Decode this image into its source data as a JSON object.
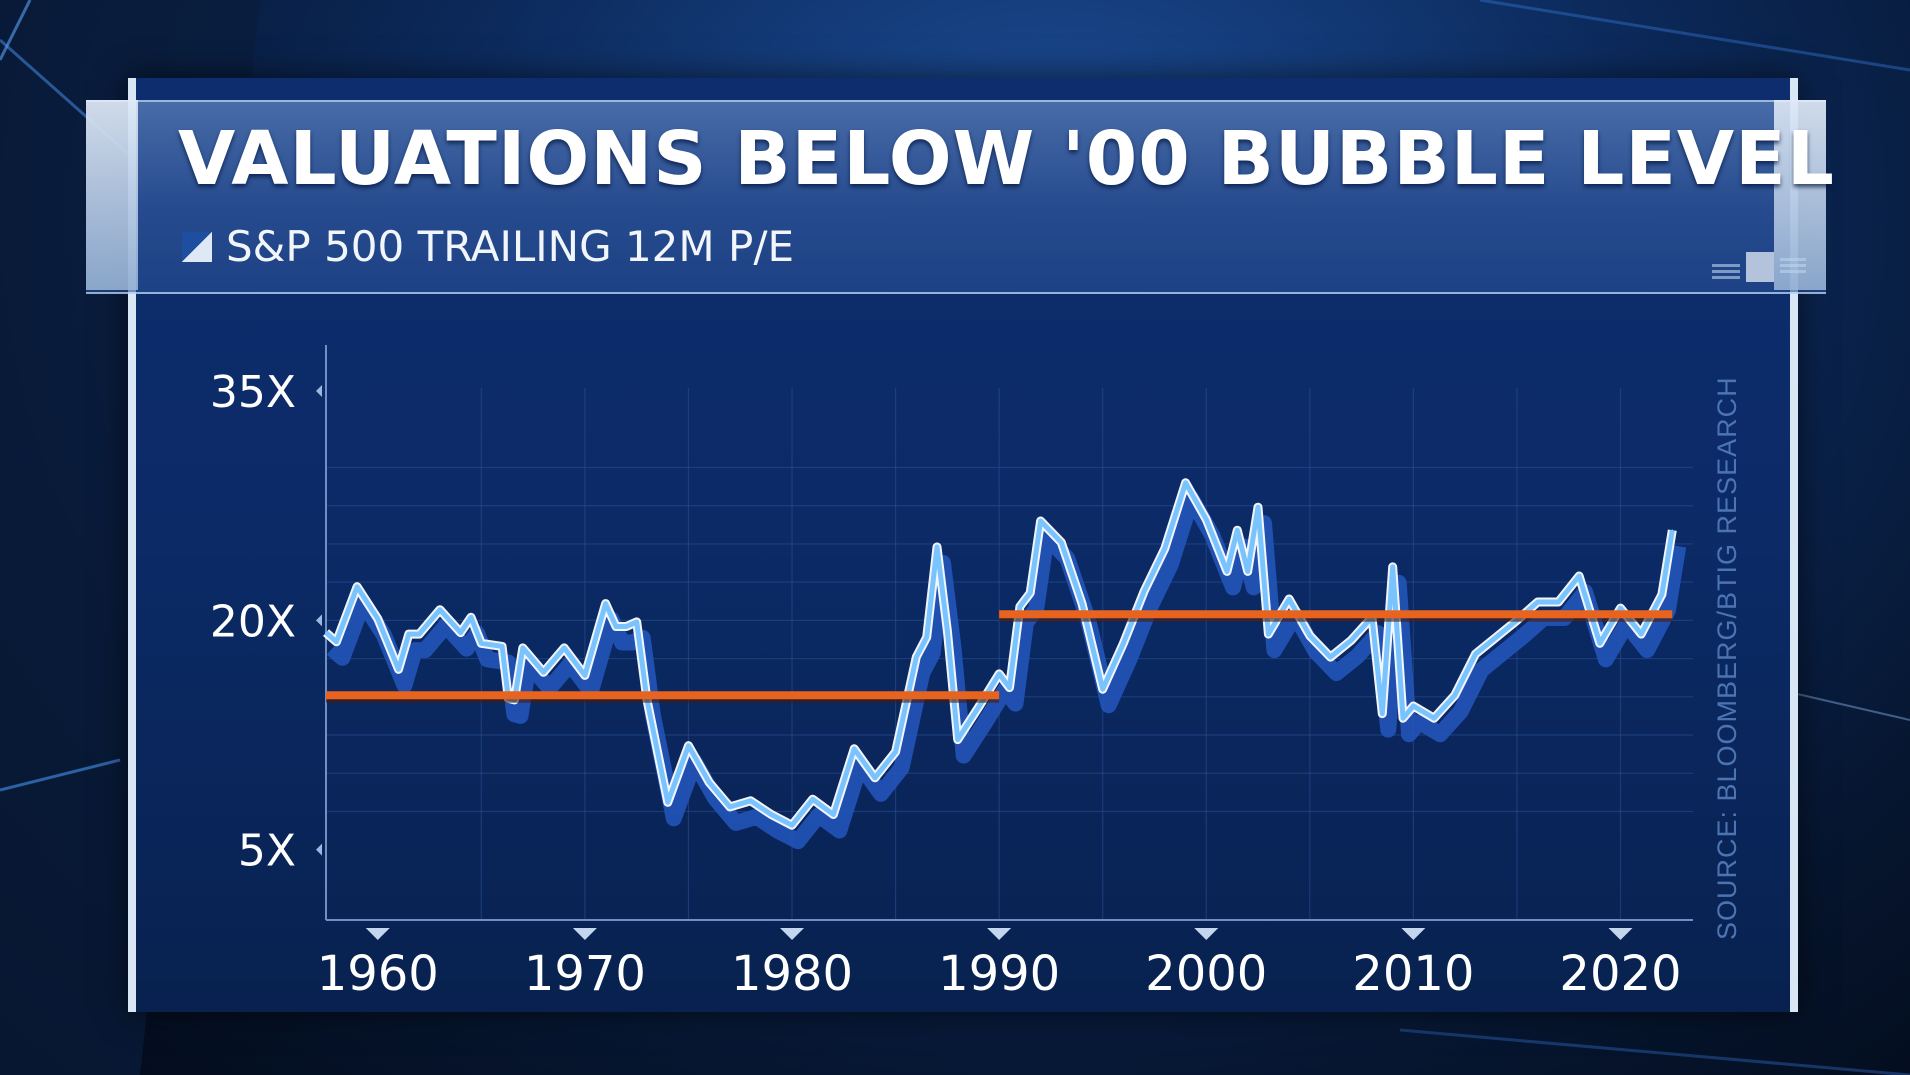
{
  "title": "VALUATIONS BELOW '00 BUBBLE LEVEL",
  "subtitle": "S&P 500 TRAILING 12M P/E",
  "source": "SOURCE: BLOOMBERG/BTIG RESEARCH",
  "colors": {
    "line": "#79c3ff",
    "line_shadow": "#2254b8",
    "average": "#e8641e",
    "text": "#ffffff"
  },
  "chart_data": {
    "type": "line",
    "title": "VALUATIONS BELOW '00 BUBBLE LEVEL",
    "subtitle": "S&P 500 TRAILING 12M P/E",
    "y_ticks": [
      5,
      20,
      35
    ],
    "y_tick_labels": [
      "5X",
      "20X",
      "35X"
    ],
    "x_ticks": [
      1960,
      1970,
      1980,
      1990,
      2000,
      2010,
      2020
    ],
    "x_tick_labels": [
      "1960",
      "1970",
      "1980",
      "1990",
      "2000",
      "2010",
      "2020"
    ],
    "xlim": [
      1957.5,
      2023.5
    ],
    "ylim": [
      0.4,
      35.2
    ],
    "grid": true,
    "series": [
      {
        "x": [
          1957.5,
          1958,
          1959,
          1960,
          1961,
          1961.5,
          1962,
          1963,
          1964,
          1964.5,
          1965,
          1966,
          1966.3,
          1966.6,
          1967,
          1968,
          1969,
          1970,
          1971,
          1971.5,
          1972,
          1972.5,
          1973,
          1974,
          1975,
          1976,
          1977,
          1978,
          1979,
          1980,
          1981,
          1982,
          1983,
          1984,
          1985,
          1986,
          1986.5,
          1987,
          1987.5,
          1988,
          1989,
          1990,
          1990.5,
          1991,
          1991.5,
          1992,
          1993,
          1994,
          1995,
          1996,
          1997,
          1998,
          1999,
          2000,
          2001,
          2001.5,
          2002,
          2002.5,
          2003,
          2004,
          2005,
          2006,
          2007,
          2008,
          2008.5,
          2009,
          2009.5,
          2010,
          2011,
          2012,
          2013,
          2014,
          2015,
          2016,
          2017,
          2018,
          2019,
          2020,
          2021,
          2022,
          2022.5
        ],
        "values": [
          19.2,
          18.6,
          22.2,
          20.1,
          16.8,
          19.1,
          19.1,
          20.7,
          19.2,
          20.2,
          18.5,
          18.3,
          14.9,
          14.8,
          18.2,
          16.6,
          18.2,
          16.4,
          21.1,
          19.6,
          19.6,
          19.9,
          14.8,
          8.1,
          11.8,
          9.4,
          7.8,
          8.2,
          7.3,
          6.6,
          8.3,
          7.3,
          11.6,
          9.7,
          11.4,
          17.6,
          18.9,
          24.8,
          19.3,
          12.2,
          14.3,
          16.5,
          15.6,
          20.9,
          21.8,
          26.5,
          25.1,
          21.1,
          15.5,
          18.5,
          21.9,
          24.7,
          29.0,
          26.6,
          23.2,
          25.9,
          23.2,
          27.4,
          19.1,
          21.4,
          19.0,
          17.6,
          18.7,
          20.2,
          13.9,
          23.5,
          13.6,
          14.4,
          13.6,
          15.1,
          17.8,
          18.9,
          20.0,
          21.2,
          21.2,
          22.9,
          18.5,
          20.8,
          19.1,
          21.7,
          25.9
        ]
      },
      {
        "name": "average",
        "segments": [
          {
            "x": [
              1957.5,
              1990
            ],
            "y": [
              15.1,
              15.1
            ]
          },
          {
            "x": [
              1990,
              2022.5
            ],
            "y": [
              20.4,
              20.4
            ]
          }
        ]
      }
    ]
  }
}
